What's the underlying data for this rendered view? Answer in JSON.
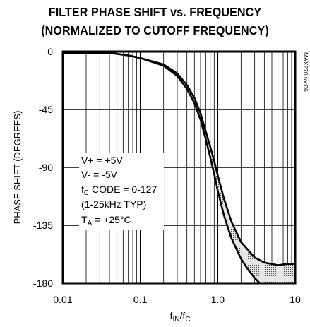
{
  "chart_data": {
    "type": "line",
    "title": "FILTER PHASE SHIFT vs. FREQUENCY",
    "subtitle": "(NORMALIZED TO CUTOFF FREQUENCY)",
    "xlabel": {
      "main": "f",
      "sub1": "IN",
      "slash": "/f",
      "sub2": "C"
    },
    "ylabel": "PHASE SHIFT (DEGREES)",
    "x_scale": "log",
    "xlim": [
      0.01,
      10
    ],
    "ylim": [
      -180,
      0
    ],
    "x_ticks": [
      {
        "value": 0.01,
        "label": "0.01"
      },
      {
        "value": 0.1,
        "label": "0.1"
      },
      {
        "value": 1,
        "label": "1.0"
      },
      {
        "value": 10,
        "label": "10"
      }
    ],
    "y_ticks": [
      {
        "value": 0,
        "label": "0"
      },
      {
        "value": -45,
        "label": "-45"
      },
      {
        "value": -90,
        "label": "-90"
      },
      {
        "value": -135,
        "label": "-135"
      },
      {
        "value": -180,
        "label": "-180"
      }
    ],
    "grid": true,
    "watermark": "MAX270 toc06",
    "conditions": {
      "vplus": "V+ = +5V",
      "vminus": "V- = -5V",
      "fc_pre": "f",
      "fc_sub": "C",
      "fc_post": " CODE = 0-127",
      "range": "(1-25kHz TYP)",
      "ta_pre": "T",
      "ta_sub": "A",
      "ta_post": " = +25°C"
    },
    "series": [
      {
        "values": [
          [
            0.01,
            -1
          ],
          [
            0.02,
            -1
          ],
          [
            0.04,
            -1
          ],
          [
            0.07,
            -3
          ],
          [
            0.1,
            -5
          ],
          [
            0.2,
            -11
          ],
          [
            0.3,
            -19
          ],
          [
            0.4,
            -29
          ],
          [
            0.5,
            -40
          ],
          [
            0.6,
            -53
          ],
          [
            0.7,
            -68
          ],
          [
            0.8,
            -82
          ],
          [
            0.9,
            -95
          ],
          [
            1.0,
            -108
          ],
          [
            1.2,
            -127
          ],
          [
            1.5,
            -145
          ],
          [
            2.0,
            -161
          ],
          [
            2.5,
            -170
          ],
          [
            3.0,
            -176
          ],
          [
            3.5,
            -180
          ]
        ]
      },
      {
        "values": [
          [
            0.01,
            -1
          ],
          [
            0.02,
            -1
          ],
          [
            0.04,
            -1
          ],
          [
            0.07,
            -3
          ],
          [
            0.1,
            -5
          ],
          [
            0.2,
            -10
          ],
          [
            0.3,
            -17
          ],
          [
            0.4,
            -26
          ],
          [
            0.5,
            -36
          ],
          [
            0.6,
            -48
          ],
          [
            0.7,
            -62
          ],
          [
            0.8,
            -74
          ],
          [
            0.9,
            -85
          ],
          [
            1.0,
            -96
          ],
          [
            1.2,
            -114
          ],
          [
            1.5,
            -132
          ],
          [
            2.0,
            -148
          ],
          [
            3.0,
            -160
          ],
          [
            4.0,
            -164
          ],
          [
            6.0,
            -166
          ],
          [
            8.0,
            -165
          ],
          [
            10,
            -165
          ]
        ]
      }
    ]
  }
}
